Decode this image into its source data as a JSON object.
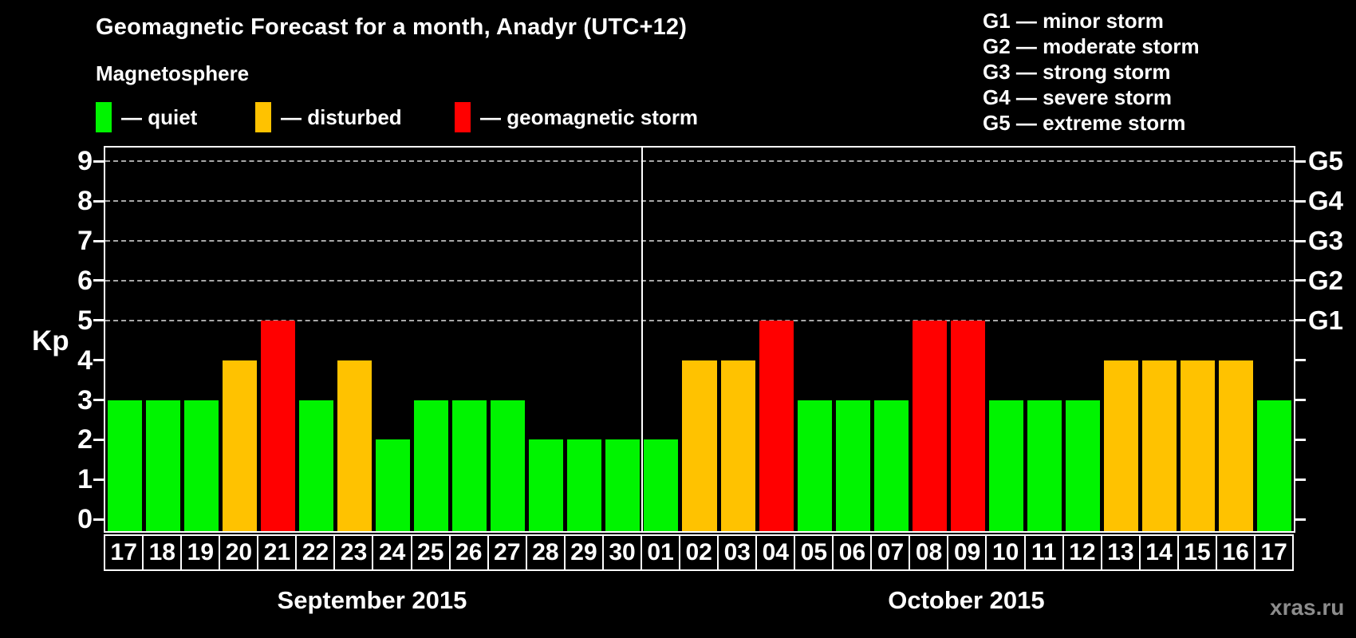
{
  "title": "Geomagnetic Forecast for a month, Anadyr (UTC+12)",
  "magnetosphere": {
    "label": "Magnetosphere",
    "legend": [
      {
        "key": "quiet",
        "label": "— quiet",
        "color": "#00f400"
      },
      {
        "key": "disturbed",
        "label": "— disturbed",
        "color": "#ffc200"
      },
      {
        "key": "storm",
        "label": "— geomagnetic storm",
        "color": "#ff0000"
      }
    ]
  },
  "g_legend": [
    "G1 — minor storm",
    "G2 — moderate storm",
    "G3 — strong storm",
    "G4 — severe storm",
    "G5 — extreme storm"
  ],
  "watermark": "xras.ru",
  "chart_data": {
    "type": "bar",
    "title": "Geomagnetic Forecast for a month, Anadyr (UTC+12)",
    "xlabel": "",
    "ylabel": "Kp",
    "ylim": [
      -0.3,
      9.35
    ],
    "yticks": [
      0,
      1,
      2,
      3,
      4,
      5,
      6,
      7,
      8,
      9
    ],
    "gridlines_at": [
      5,
      6,
      7,
      8,
      9
    ],
    "grid": "dashed horizontal at storm levels only",
    "right_axis": [
      {
        "kp": 5,
        "label": "G1"
      },
      {
        "kp": 6,
        "label": "G2"
      },
      {
        "kp": 7,
        "label": "G3"
      },
      {
        "kp": 8,
        "label": "G4"
      },
      {
        "kp": 9,
        "label": "G5"
      }
    ],
    "categories": [
      "17",
      "18",
      "19",
      "20",
      "21",
      "22",
      "23",
      "24",
      "25",
      "26",
      "27",
      "28",
      "29",
      "30",
      "01",
      "02",
      "03",
      "04",
      "05",
      "06",
      "07",
      "08",
      "09",
      "10",
      "11",
      "12",
      "13",
      "14",
      "15",
      "16",
      "17"
    ],
    "values": [
      3,
      3,
      3,
      4,
      5,
      3,
      4,
      2,
      3,
      3,
      3,
      2,
      2,
      2,
      2,
      4,
      4,
      5,
      3,
      3,
      3,
      5,
      5,
      3,
      3,
      3,
      4,
      4,
      4,
      4,
      3
    ],
    "statuses": [
      "quiet",
      "quiet",
      "quiet",
      "disturbed",
      "storm",
      "quiet",
      "disturbed",
      "quiet",
      "quiet",
      "quiet",
      "quiet",
      "quiet",
      "quiet",
      "quiet",
      "quiet",
      "disturbed",
      "disturbed",
      "storm",
      "quiet",
      "quiet",
      "quiet",
      "storm",
      "storm",
      "quiet",
      "quiet",
      "quiet",
      "disturbed",
      "disturbed",
      "disturbed",
      "disturbed",
      "quiet"
    ],
    "status_colors": {
      "quiet": "#00f400",
      "disturbed": "#ffc200",
      "storm": "#ff0000"
    },
    "months": [
      {
        "label": "September 2015",
        "start_index": 0,
        "days": 14
      },
      {
        "label": "October 2015",
        "start_index": 14,
        "days": 17
      }
    ]
  }
}
